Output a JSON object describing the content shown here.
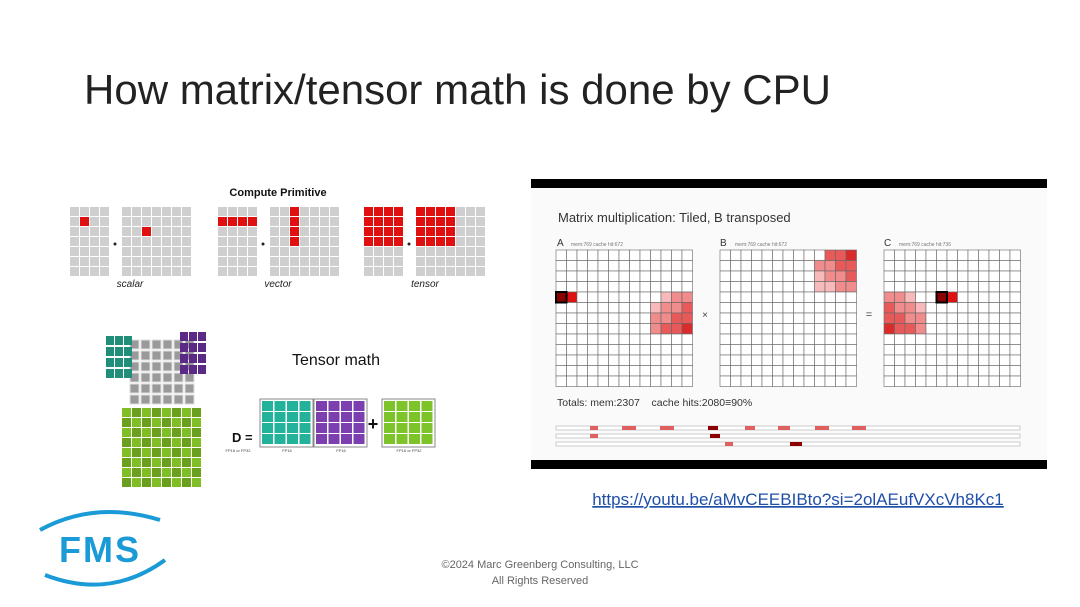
{
  "title": "How matrix/tensor math is done by CPU",
  "primitives": {
    "heading": "Compute Primitive",
    "labels": [
      "scalar",
      "vector",
      "tensor"
    ]
  },
  "tensor_math": {
    "heading": "Tensor math",
    "equation": "D =",
    "plus": "+",
    "precision_labels": [
      "FP16 or FP32",
      "FP16",
      "FP16",
      "FP16 or FP32"
    ]
  },
  "animation": {
    "heading": "Matrix multiplication: Tiled, B transposed",
    "matrices": [
      {
        "name": "A",
        "stats": "mem:769 cache hit:672"
      },
      {
        "name": "B",
        "stats": "mem:769 cache hit:672"
      },
      {
        "name": "C",
        "stats": "mem:769 cache hit:736"
      }
    ],
    "operators": [
      "×",
      "="
    ],
    "totals": "Totals: mem:2307    cache hits:2080≡90%"
  },
  "link": "https://youtu.be/aMvCEEBIBto?si=2olAEufVXcVh8Kc1",
  "footer": [
    "©2024 Marc Greenberg Consulting, LLC",
    "All Rights Reserved"
  ],
  "logo": "FMS"
}
